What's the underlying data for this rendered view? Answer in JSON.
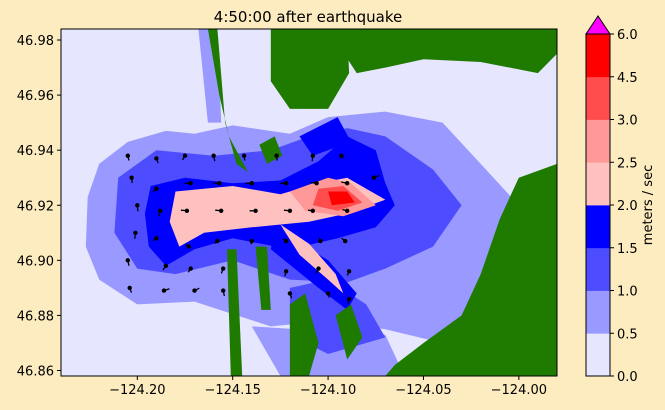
{
  "chart_data": {
    "type": "heatmap",
    "title": "4:50:00 after earthquake",
    "xlabel": "",
    "ylabel": "",
    "xlim": [
      -124.24,
      -123.98
    ],
    "ylim": [
      46.858,
      46.984
    ],
    "x_ticks": [
      -124.2,
      -124.15,
      -124.1,
      -124.05,
      -124.0
    ],
    "x_tick_labels": [
      "−124.20",
      "−124.15",
      "−124.10",
      "−124.05",
      "−124.00"
    ],
    "y_ticks": [
      46.86,
      46.88,
      46.9,
      46.92,
      46.94,
      46.96,
      46.98
    ],
    "y_tick_labels": [
      "46.86",
      "46.88",
      "46.90",
      "46.92",
      "46.94",
      "46.96",
      "46.98"
    ],
    "colorbar": {
      "label": "meters / sec",
      "levels": [
        0.0,
        0.5,
        1.0,
        1.5,
        2.0,
        2.5,
        3.0,
        4.5,
        6.0
      ],
      "level_labels": [
        "0.0",
        "0.5",
        "1.0",
        "1.5",
        "2.0",
        "2.5",
        "3.0",
        "4.5",
        "6.0"
      ],
      "colors": [
        "#e6e6ff",
        "#9999ff",
        "#4d4dff",
        "#0000ff",
        "#ffc0c0",
        "#ff9999",
        "#ff4d4d",
        "#ff0000"
      ],
      "extend_color": "#ff00ff"
    },
    "land_color": "#1f7a00",
    "ocean_background": "#e4e4ff",
    "grid": false,
    "regions": [
      {
        "level": 0,
        "pts": [
          [
            -124.24,
            46.984
          ],
          [
            -123.98,
            46.984
          ],
          [
            -123.98,
            46.858
          ],
          [
            -124.24,
            46.858
          ]
        ]
      },
      {
        "level": 1,
        "pts": [
          [
            -124.226,
            46.923
          ],
          [
            -124.22,
            46.935
          ],
          [
            -124.205,
            46.943
          ],
          [
            -124.185,
            46.947
          ],
          [
            -124.17,
            46.946
          ],
          [
            -124.15,
            46.949
          ],
          [
            -124.12,
            46.946
          ],
          [
            -124.1,
            46.952
          ],
          [
            -124.07,
            46.954
          ],
          [
            -124.04,
            46.95
          ],
          [
            -124.02,
            46.935
          ],
          [
            -124.0,
            46.92
          ],
          [
            -123.99,
            46.9
          ],
          [
            -124.0,
            46.872
          ],
          [
            -124.04,
            46.87
          ],
          [
            -124.07,
            46.875
          ],
          [
            -124.1,
            46.878
          ],
          [
            -124.13,
            46.876
          ],
          [
            -124.17,
            46.885
          ],
          [
            -124.2,
            46.884
          ],
          [
            -124.22,
            46.893
          ],
          [
            -124.227,
            46.905
          ]
        ]
      },
      {
        "level": 1,
        "pts": [
          [
            -124.168,
            46.984
          ],
          [
            -124.158,
            46.984
          ],
          [
            -124.156,
            46.95
          ],
          [
            -124.163,
            46.95
          ]
        ]
      },
      {
        "level": 1,
        "pts": [
          [
            -124.14,
            46.876
          ],
          [
            -124.125,
            46.858
          ],
          [
            -124.06,
            46.858
          ],
          [
            -124.07,
            46.873
          ]
        ]
      },
      {
        "level": 2,
        "pts": [
          [
            -124.21,
            46.93
          ],
          [
            -124.19,
            46.94
          ],
          [
            -124.16,
            46.938
          ],
          [
            -124.13,
            46.94
          ],
          [
            -124.11,
            46.945
          ],
          [
            -124.09,
            46.948
          ],
          [
            -124.07,
            46.945
          ],
          [
            -124.045,
            46.933
          ],
          [
            -124.03,
            46.92
          ],
          [
            -124.045,
            46.905
          ],
          [
            -124.07,
            46.897
          ],
          [
            -124.09,
            46.892
          ],
          [
            -124.12,
            46.893
          ],
          [
            -124.15,
            46.9
          ],
          [
            -124.18,
            46.895
          ],
          [
            -124.2,
            46.897
          ],
          [
            -124.212,
            46.91
          ]
        ]
      },
      {
        "level": 2,
        "pts": [
          [
            -124.12,
            46.89
          ],
          [
            -124.1,
            46.893
          ],
          [
            -124.08,
            46.884
          ],
          [
            -124.07,
            46.872
          ],
          [
            -124.1,
            46.866
          ],
          [
            -124.12,
            46.873
          ]
        ]
      },
      {
        "level": 3,
        "pts": [
          [
            -124.193,
            46.927
          ],
          [
            -124.175,
            46.93
          ],
          [
            -124.15,
            46.928
          ],
          [
            -124.125,
            46.929
          ],
          [
            -124.105,
            46.936
          ],
          [
            -124.09,
            46.945
          ],
          [
            -124.075,
            46.94
          ],
          [
            -124.07,
            46.928
          ],
          [
            -124.065,
            46.92
          ],
          [
            -124.075,
            46.912
          ],
          [
            -124.095,
            46.908
          ],
          [
            -124.12,
            46.904
          ],
          [
            -124.15,
            46.908
          ],
          [
            -124.17,
            46.904
          ],
          [
            -124.185,
            46.898
          ],
          [
            -124.194,
            46.905
          ],
          [
            -124.196,
            46.917
          ]
        ]
      },
      {
        "level": 3,
        "pts": [
          [
            -124.128,
            46.912
          ],
          [
            -124.1,
            46.9
          ],
          [
            -124.085,
            46.888
          ],
          [
            -124.09,
            46.882
          ],
          [
            -124.105,
            46.89
          ],
          [
            -124.13,
            46.904
          ]
        ]
      },
      {
        "level": 3,
        "pts": [
          [
            -124.115,
            46.945
          ],
          [
            -124.095,
            46.952
          ],
          [
            -124.088,
            46.943
          ],
          [
            -124.108,
            46.938
          ]
        ]
      },
      {
        "level": 4,
        "pts": [
          [
            -124.18,
            46.925
          ],
          [
            -124.15,
            46.927
          ],
          [
            -124.125,
            46.924
          ],
          [
            -124.105,
            46.928
          ],
          [
            -124.09,
            46.93
          ],
          [
            -124.08,
            46.926
          ],
          [
            -124.07,
            46.922
          ],
          [
            -124.09,
            46.917
          ],
          [
            -124.11,
            46.914
          ],
          [
            -124.14,
            46.912
          ],
          [
            -124.165,
            46.91
          ],
          [
            -124.178,
            46.905
          ],
          [
            -124.183,
            46.914
          ]
        ]
      },
      {
        "level": 4,
        "pts": [
          [
            -124.125,
            46.913
          ],
          [
            -124.11,
            46.906
          ],
          [
            -124.096,
            46.895
          ],
          [
            -124.092,
            46.888
          ],
          [
            -124.1,
            46.893
          ],
          [
            -124.115,
            46.902
          ]
        ]
      },
      {
        "level": 5,
        "pts": [
          [
            -124.12,
            46.925
          ],
          [
            -124.1,
            46.93
          ],
          [
            -124.088,
            46.928
          ],
          [
            -124.075,
            46.92
          ],
          [
            -124.092,
            46.916
          ],
          [
            -124.112,
            46.918
          ]
        ]
      },
      {
        "level": 6,
        "pts": [
          [
            -124.105,
            46.926
          ],
          [
            -124.092,
            46.927
          ],
          [
            -124.082,
            46.921
          ],
          [
            -124.095,
            46.918
          ],
          [
            -124.108,
            46.92
          ]
        ]
      },
      {
        "level": 7,
        "pts": [
          [
            -124.1,
            46.925
          ],
          [
            -124.09,
            46.925
          ],
          [
            -124.086,
            46.921
          ],
          [
            -124.098,
            46.92
          ]
        ]
      }
    ],
    "land": [
      {
        "pts": [
          [
            -124.163,
            46.984
          ],
          [
            -124.158,
            46.984
          ],
          [
            -124.154,
            46.95
          ],
          [
            -124.148,
            46.935
          ],
          [
            -124.142,
            46.932
          ],
          [
            -124.152,
            46.945
          ],
          [
            -124.157,
            46.96
          ]
        ]
      },
      {
        "pts": [
          [
            -124.153,
            46.904
          ],
          [
            -124.148,
            46.904
          ],
          [
            -124.145,
            46.858
          ],
          [
            -124.151,
            46.858
          ]
        ]
      },
      {
        "pts": [
          [
            -124.138,
            46.905
          ],
          [
            -124.132,
            46.905
          ],
          [
            -124.13,
            46.882
          ],
          [
            -124.135,
            46.882
          ]
        ]
      },
      {
        "pts": [
          [
            -124.13,
            46.984
          ],
          [
            -124.09,
            46.984
          ],
          [
            -124.089,
            46.968
          ],
          [
            -124.1,
            46.955
          ],
          [
            -124.12,
            46.955
          ],
          [
            -124.13,
            46.965
          ]
        ]
      },
      {
        "pts": [
          [
            -124.1,
            46.984
          ],
          [
            -123.98,
            46.984
          ],
          [
            -123.98,
            46.975
          ],
          [
            -123.99,
            46.968
          ],
          [
            -124.02,
            46.972
          ],
          [
            -124.05,
            46.973
          ],
          [
            -124.07,
            46.97
          ],
          [
            -124.085,
            46.968
          ]
        ]
      },
      {
        "pts": [
          [
            -123.98,
            46.935
          ],
          [
            -124.0,
            46.93
          ],
          [
            -124.01,
            46.915
          ],
          [
            -124.02,
            46.895
          ],
          [
            -124.03,
            46.88
          ],
          [
            -124.05,
            46.87
          ],
          [
            -124.065,
            46.862
          ],
          [
            -124.07,
            46.858
          ],
          [
            -123.98,
            46.858
          ]
        ]
      },
      {
        "pts": [
          [
            -124.12,
            46.884
          ],
          [
            -124.112,
            46.888
          ],
          [
            -124.105,
            46.87
          ],
          [
            -124.11,
            46.858
          ],
          [
            -124.12,
            46.858
          ]
        ]
      },
      {
        "pts": [
          [
            -124.096,
            46.88
          ],
          [
            -124.088,
            46.884
          ],
          [
            -124.082,
            46.872
          ],
          [
            -124.09,
            46.864
          ]
        ]
      },
      {
        "pts": [
          [
            -124.136,
            46.942
          ],
          [
            -124.128,
            46.945
          ],
          [
            -124.124,
            46.938
          ],
          [
            -124.132,
            46.935
          ]
        ]
      }
    ],
    "vectors": [
      [
        -124.205,
        46.938,
        0.2,
        -0.8
      ],
      [
        -124.203,
        46.93,
        0.1,
        -0.9
      ],
      [
        -124.2,
        46.92,
        0.1,
        -1.0
      ],
      [
        -124.201,
        46.91,
        -0.1,
        -1.0
      ],
      [
        -124.205,
        46.9,
        0.2,
        -0.9
      ],
      [
        -124.204,
        46.89,
        0.3,
        -0.8
      ],
      [
        -124.19,
        46.937,
        0.3,
        -0.8
      ],
      [
        -124.19,
        46.926,
        -0.5,
        -0.5
      ],
      [
        -124.188,
        46.918,
        -0.2,
        -0.9
      ],
      [
        -124.19,
        46.908,
        -0.6,
        -0.4
      ],
      [
        -124.185,
        46.898,
        -0.5,
        -0.7
      ],
      [
        -124.186,
        46.889,
        0.9,
        0.3
      ],
      [
        -124.175,
        46.938,
        -0.4,
        -0.7
      ],
      [
        -124.172,
        46.928,
        -1.0,
        0.0
      ],
      [
        -124.174,
        46.918,
        -1.0,
        0.1
      ],
      [
        -124.173,
        46.905,
        -0.5,
        0.4
      ],
      [
        -124.172,
        46.897,
        -0.4,
        -0.6
      ],
      [
        -124.17,
        46.889,
        0.8,
        0.4
      ],
      [
        -124.16,
        46.938,
        0.2,
        -0.9
      ],
      [
        -124.157,
        46.928,
        -1.0,
        0.0
      ],
      [
        -124.156,
        46.918,
        -1.0,
        0.1
      ],
      [
        -124.158,
        46.907,
        -0.4,
        -0.4
      ],
      [
        -124.155,
        46.897,
        -0.3,
        -0.8
      ],
      [
        -124.155,
        46.889,
        0.2,
        -0.9
      ],
      [
        -124.144,
        46.938,
        0.1,
        -0.8
      ],
      [
        -124.14,
        46.928,
        -1.0,
        0.0
      ],
      [
        -124.138,
        46.918,
        -1.0,
        0.0
      ],
      [
        -124.14,
        46.907,
        -0.1,
        -0.5
      ],
      [
        -124.127,
        46.938,
        0.1,
        -0.8
      ],
      [
        -124.122,
        46.928,
        -1.0,
        0.0
      ],
      [
        -124.12,
        46.918,
        -1.0,
        0.1
      ],
      [
        -124.122,
        46.907,
        -0.5,
        0.4
      ],
      [
        -124.122,
        46.896,
        -0.2,
        -0.8
      ],
      [
        -124.12,
        46.888,
        0.3,
        -0.8
      ],
      [
        -124.108,
        46.938,
        -0.1,
        -0.9
      ],
      [
        -124.106,
        46.928,
        -1.0,
        0.1
      ],
      [
        -124.108,
        46.918,
        -0.8,
        0.1
      ],
      [
        -124.104,
        46.907,
        -0.2,
        0.5
      ],
      [
        -124.105,
        46.897,
        -0.4,
        -0.8
      ],
      [
        -124.1,
        46.888,
        0.2,
        -0.7
      ],
      [
        -124.093,
        46.938,
        0.3,
        -0.5
      ],
      [
        -124.09,
        46.928,
        -1.0,
        0.2
      ],
      [
        -124.09,
        46.918,
        -0.8,
        0.2
      ],
      [
        -124.091,
        46.907,
        -0.6,
        0.5
      ],
      [
        -124.089,
        46.896,
        -0.3,
        -0.7
      ],
      [
        -124.089,
        46.886,
        -0.2,
        -0.8
      ],
      [
        -124.076,
        46.93,
        0.9,
        0.4
      ]
    ]
  }
}
